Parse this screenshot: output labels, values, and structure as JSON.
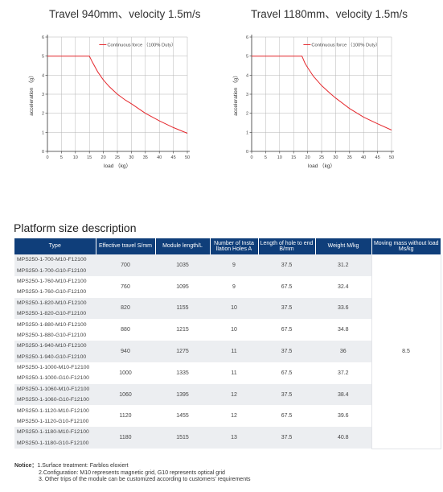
{
  "charts": [
    {
      "title": "Travel 940mm、velocity 1.5m/s",
      "xlabel": "load （kg）",
      "ylabel": "acceleration （g）",
      "legend": "Continuous force （100% Duty）",
      "x_ticks": [
        "0",
        "5",
        "10",
        "15",
        "20",
        "25",
        "30",
        "35",
        "40",
        "45",
        "50"
      ],
      "y_ticks": [
        "0",
        "1",
        "2",
        "3",
        "4",
        "5",
        "6"
      ],
      "line_color": "#e5282d"
    },
    {
      "title": "Travel 1180mm、velocity 1.5m/s",
      "xlabel": "load （kg）",
      "ylabel": "acceleration （g）",
      "legend": "Continuous force （100% Duty）",
      "x_ticks": [
        "0",
        "5",
        "10",
        "15",
        "20",
        "25",
        "30",
        "35",
        "40",
        "45",
        "50"
      ],
      "y_ticks": [
        "0",
        "1",
        "2",
        "3",
        "4",
        "5",
        "6"
      ],
      "line_color": "#e5282d"
    }
  ],
  "chart_data": [
    {
      "type": "line",
      "title": "Travel 940mm、velocity 1.5m/s",
      "xlabel": "load （kg）",
      "ylabel": "acceleration （g）",
      "xlim": [
        0,
        50
      ],
      "ylim": [
        0,
        6
      ],
      "grid": true,
      "legend_position": "top-right",
      "series": [
        {
          "name": "Continuous force （100% Duty）",
          "x": [
            0,
            15,
            16,
            18,
            20,
            22,
            25,
            28,
            30,
            35,
            40,
            45,
            50
          ],
          "y": [
            5,
            5,
            4.7,
            4.17,
            3.75,
            3.41,
            3.0,
            2.68,
            2.5,
            2.0,
            1.6,
            1.25,
            0.95
          ]
        }
      ]
    },
    {
      "type": "line",
      "title": "Travel 1180mm、velocity 1.5m/s",
      "xlabel": "load （kg）",
      "ylabel": "acceleration （g）",
      "xlim": [
        0,
        50
      ],
      "ylim": [
        0,
        6
      ],
      "grid": true,
      "legend_position": "top-right",
      "series": [
        {
          "name": "Continuous force （100% Duty）",
          "x": [
            0,
            18,
            19,
            20,
            22,
            25,
            28,
            30,
            35,
            40,
            45,
            50
          ],
          "y": [
            5,
            5,
            4.65,
            4.4,
            3.95,
            3.45,
            3.05,
            2.8,
            2.25,
            1.8,
            1.45,
            1.12
          ]
        }
      ]
    }
  ],
  "section": {
    "title": "Platform size description"
  },
  "table": {
    "headers": [
      "Type",
      "Effective travel S/mm",
      "Module length/L",
      "Number of Insta llation Holes A",
      "Length of hole to end B/mm",
      "Weight M/kg",
      "Moving mass without load Ms/kg"
    ],
    "types": [
      "MPS250-1-700-M10-F12100",
      "MPS250-1-700-G10-F12100",
      "MPS250-1-760-M10-F12100",
      "MPS250-1-760-G10-F12100",
      "MPS250-1-820-M10-F12100",
      "MPS250-1-820-G10-F12100",
      "MPS250-1-880-M10-F12100",
      "MPS250-1-880-G10-F12100",
      "MPS250-1-940-M10-F12100",
      "MPS250-1-940-G10-F12100",
      "MPS250-1-1000-M10-F12100",
      "MPS250-1-1000-G10-F12100",
      "MPS250-1-1060-M10-F12100",
      "MPS250-1-1060-G10-F12100",
      "MPS250-1-1120-M10-F12100",
      "MPS250-1-1120-G10-F12100",
      "MPS250-1-1180-M10-F12100",
      "MPS250-1-1180-G10-F12100"
    ],
    "groups": [
      {
        "travel": "700",
        "length": "1035",
        "holes": "9",
        "hole_end": "37.5",
        "weight": "31.2"
      },
      {
        "travel": "760",
        "length": "1095",
        "holes": "9",
        "hole_end": "67.5",
        "weight": "32.4"
      },
      {
        "travel": "820",
        "length": "1155",
        "holes": "10",
        "hole_end": "37.5",
        "weight": "33.6"
      },
      {
        "travel": "880",
        "length": "1215",
        "holes": "10",
        "hole_end": "67.5",
        "weight": "34.8"
      },
      {
        "travel": "940",
        "length": "1275",
        "holes": "11",
        "hole_end": "37.5",
        "weight": "36"
      },
      {
        "travel": "1000",
        "length": "1335",
        "holes": "11",
        "hole_end": "67.5",
        "weight": "37.2"
      },
      {
        "travel": "1060",
        "length": "1395",
        "holes": "12",
        "hole_end": "37.5",
        "weight": "38.4"
      },
      {
        "travel": "1120",
        "length": "1455",
        "holes": "12",
        "hole_end": "67.5",
        "weight": "39.6"
      },
      {
        "travel": "1180",
        "length": "1515",
        "holes": "13",
        "hole_end": "37.5",
        "weight": "40.8"
      }
    ],
    "moving_mass": "8.5",
    "header_color": "#0f3e7a",
    "shade_color": "#eceef1"
  },
  "notice": {
    "label": "Notice：",
    "items": [
      "1.Surface treatment: Farblos eloxiert",
      "2.Configuration: M10 represents magnetic grid, G10 represents optical grid",
      "3. Other trips of the module can be customized according to customers’ requirements"
    ]
  }
}
